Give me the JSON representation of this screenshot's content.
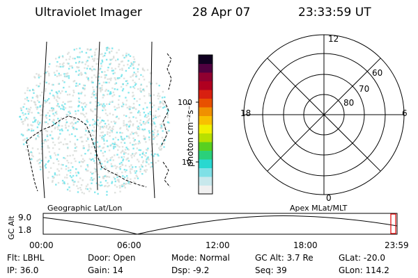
{
  "header": {
    "title": "Ultraviolet Imager",
    "date": "28 Apr 07",
    "time": "23:33:59 UT"
  },
  "colorbar": {
    "unit_label": "photon cm⁻²s⁻¹",
    "ticks": [
      "100",
      "10"
    ],
    "scale": "log",
    "colors": [
      "#f0f0f0",
      "#c8e8ec",
      "#7fe0e6",
      "#28d8d0",
      "#2ad07a",
      "#58d020",
      "#b8e000",
      "#f0f000",
      "#f8c000",
      "#f09000",
      "#e85000",
      "#d82010",
      "#b00020",
      "#900030",
      "#500040",
      "#100020"
    ]
  },
  "geo_panel": {
    "label": "Geographic Lat/Lon"
  },
  "polar_panel": {
    "label": "Apex MLat/MLT",
    "mlt_labels": {
      "top": "12",
      "left": "18",
      "right": "6",
      "bottom": "0"
    },
    "lat_labels": [
      "60",
      "70",
      "80"
    ]
  },
  "gc_alt_plot": {
    "ylabel": "GC Alt",
    "y_ticks": [
      "9.0",
      "1.8"
    ],
    "x_ticks": [
      "00:00",
      "06:00",
      "12:00",
      "18:00",
      "23:59"
    ]
  },
  "info": {
    "flt": "Flt: LBHL",
    "ip": "IP: 36.0",
    "door": "Door: Open",
    "gain": "Gain: 14",
    "mode": "Mode: Normal",
    "dsp": "Dsp:    -9.2",
    "gc_alt": "GC Alt: 3.7 Re",
    "seq": "Seq: 39",
    "glat": "GLat: -20.0",
    "glon": "GLon: 114.2"
  },
  "colors": {
    "cyan_pixel": "#5ee0e8",
    "gray_pixel": "#d4d8d4",
    "marker": "#e00000"
  }
}
